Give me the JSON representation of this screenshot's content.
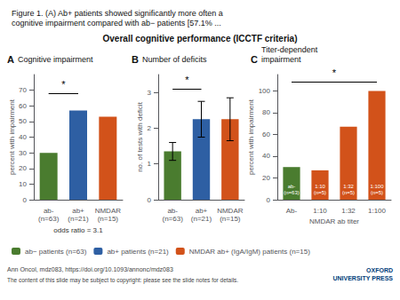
{
  "title": "Figure 1. (A) Ab+ patients showed significantly more often a\ncognitive impairment compared with ab− patients [57.1% ...",
  "subtitle": "Overall cognitive performance (ICCTF criteria)",
  "legend": "lower left",
  "annotations": [
    "Ann Oncol, mdz083, https://doi.org/10.1093/annonc/mdz083",
    "The content of this slide may be subject to copyright: please see the slide notes for details.",
    "OXFORD\nUNIVERSITY PRESS"
  ],
  "chart_data": [
    {
      "type": "bar",
      "title": "A",
      "subtitle": "Cognitive impairment",
      "ylabel": "percent with impairment",
      "categories": [
        "ab-\n(n=63)",
        "ab+\n(n=21)",
        "NMDAR\n(n=15)"
      ],
      "series": [
        {
          "name": "ab− patients (n=63)",
          "color": "#4a7c2f",
          "values": [
            30,
            null,
            null
          ]
        },
        {
          "name": "ab+ patients (n=21)",
          "color": "#2e5fa3",
          "values": [
            null,
            57,
            null
          ]
        },
        {
          "name": "NMDAR ab+ (IgA/IgM) patients (n=15)",
          "color": "#d2521a",
          "values": [
            null,
            null,
            53
          ]
        }
      ],
      "ylim": [
        0,
        80
      ],
      "yticks": [
        0,
        10,
        20,
        30,
        40,
        50,
        60,
        70
      ],
      "grid": false,
      "annotations": [
        {
          "text": "*",
          "x": [
            "ab-\n(n=63)",
            "ab+\n(n=21)"
          ],
          "y": 68
        },
        {
          "text": "odds ratio = 3.1"
        }
      ]
    },
    {
      "type": "bar",
      "title": "B",
      "subtitle": "Number of deficits",
      "ylabel": "no. of tests with deficit",
      "categories": [
        "ab-\n(n=63)",
        "ab+\n(n=21)",
        "NMDAR\n(n=15)"
      ],
      "series": [
        {
          "name": "ab− patients (n=63)",
          "color": "#4a7c2f",
          "values": [
            1.35,
            null,
            null
          ],
          "errors": [
            0.25,
            null,
            null
          ]
        },
        {
          "name": "ab+ patients (n=21)",
          "color": "#2e5fa3",
          "values": [
            null,
            2.25,
            null
          ],
          "errors": [
            null,
            0.5,
            null
          ]
        },
        {
          "name": "NMDAR ab+ (IgA/IgM) patients (n=15)",
          "color": "#d2521a",
          "values": [
            null,
            null,
            2.25
          ],
          "errors": [
            null,
            null,
            0.6
          ]
        }
      ],
      "ylim": [
        0,
        3.5
      ],
      "yticks": [
        0,
        1,
        2,
        3
      ],
      "grid": false,
      "annotations": [
        {
          "text": "*",
          "x": [
            "ab-\n(n=63)",
            "ab+\n(n=21)"
          ],
          "y": 3.1
        }
      ]
    },
    {
      "type": "bar",
      "title": "C",
      "subtitle": "Titer-dependent\nimpairment",
      "ylabel": "percent with impairment",
      "xlabel": "NMDAR ab titer",
      "categories": [
        "Ab-",
        "1:10",
        "1:32",
        "1:100"
      ],
      "series": [
        {
          "name": "ab− patients (n=63)",
          "color": "#4a7c2f",
          "values": [
            30,
            null,
            null,
            null
          ]
        },
        {
          "name": "NMDAR ab+ (IgA/IgM) patients (n=15)",
          "color": "#d2521a",
          "values": [
            null,
            27,
            67,
            100
          ]
        }
      ],
      "ylim": [
        0,
        115
      ],
      "yticks": [
        0,
        20,
        40,
        60,
        80,
        100
      ],
      "grid": false,
      "annotations": [
        {
          "text": "ab-\n(n=63)",
          "x": "Ab-"
        },
        {
          "text": "1:10\n(n=5)",
          "x": "1:10"
        },
        {
          "text": "1:32\n(n=5)",
          "x": "1:32"
        },
        {
          "text": "1:100\n(n=5)",
          "x": "1:100"
        },
        {
          "text": "*",
          "x": [
            "Ab-",
            "1:100"
          ],
          "y": 108
        }
      ]
    }
  ]
}
